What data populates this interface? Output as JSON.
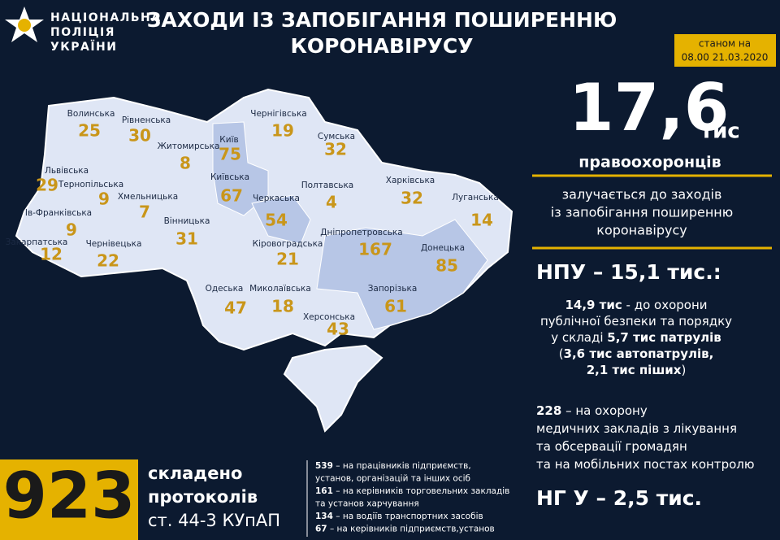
{
  "header": {
    "org_lines": [
      "НАЦІОНАЛЬНА",
      "ПОЛІЦІЯ",
      "УКРАЇНИ"
    ],
    "title_lines": [
      "ЗАХОДИ ІЗ ЗАПОБІГАННЯ ПОШИРЕННЮ",
      "КОРОНАВІРУСУ"
    ],
    "date_lines": [
      "станом на",
      "08.00 21.03.2020"
    ]
  },
  "regions": [
    {
      "name": "Волинська",
      "count": "25"
    },
    {
      "name": "Рівненська",
      "count": "30"
    },
    {
      "name": "Житомирська",
      "count": "8"
    },
    {
      "name": "Київ",
      "count": "75"
    },
    {
      "name": "Київська",
      "count": "67"
    },
    {
      "name": "Чернігівська",
      "count": "19"
    },
    {
      "name": "Сумська",
      "count": "32"
    },
    {
      "name": "Полтавська",
      "count": "4"
    },
    {
      "name": "Харківська",
      "count": "32"
    },
    {
      "name": "Луганська",
      "count": "14"
    },
    {
      "name": "Львівська",
      "count": "29"
    },
    {
      "name": "Тернопільська",
      "count": "9"
    },
    {
      "name": "Хмельницька",
      "count": "7"
    },
    {
      "name": "Ів-Франківська",
      "count": "9"
    },
    {
      "name": "Закарпатська",
      "count": "12"
    },
    {
      "name": "Чернівецька",
      "count": "22"
    },
    {
      "name": "Вінницька",
      "count": "31"
    },
    {
      "name": "Черкаська",
      "count": "54"
    },
    {
      "name": "Кіровоградська",
      "count": "21"
    },
    {
      "name": "Дніпропетровська",
      "count": "167"
    },
    {
      "name": "Донецька",
      "count": "85"
    },
    {
      "name": "Одеська",
      "count": "47"
    },
    {
      "name": "Миколаївська",
      "count": "18"
    },
    {
      "name": "Запорізька",
      "count": "61"
    },
    {
      "name": "Херсонська",
      "count": "43"
    }
  ],
  "summary": {
    "total": "17,6",
    "total_unit": "тис",
    "total_label": "правоохоронців",
    "description_lines": [
      "залучається до заходів",
      "із запобігання поширенню",
      "коронавірусу"
    ],
    "npu_heading": "НПУ – 15,1 тис.:",
    "npu_lines": [
      [
        {
          "text": "14,9 тис",
          "bold": true
        },
        {
          "text": " - до охорони"
        }
      ],
      [
        {
          "text": "публічної безпеки  та порядку"
        }
      ],
      [
        {
          "text": "у складі "
        },
        {
          "text": "5,7 тис патрулів",
          "bold": true
        }
      ],
      [
        {
          "text": "("
        },
        {
          "text": "3,6 тис автопатрулів,",
          "bold": true
        }
      ],
      [
        {
          "text": "2,1 тис піших",
          "bold": true
        },
        {
          "text": ")"
        }
      ]
    ],
    "medical_lines": [
      [
        {
          "text": "228",
          "bold": true
        },
        {
          "text": " – на охорону"
        }
      ],
      [
        {
          "text": "медичних закладів з лікування"
        }
      ],
      [
        {
          "text": "та обсервації громадян"
        }
      ],
      [
        {
          "text": "та на мобільних постах контролю"
        }
      ]
    ],
    "ngu_heading": "НГ У – 2,5 тис."
  },
  "protocols": {
    "count": "923",
    "label_lines": [
      "складено",
      "протоколів",
      "ст. 44-3 КУпАП"
    ],
    "breakdown": [
      [
        {
          "text": "539",
          "bold": true
        },
        {
          "text": " – на працівників підприємств,"
        }
      ],
      [
        {
          "text": "установ, організацій та інших осіб"
        }
      ],
      [
        {
          "text": "161",
          "bold": true
        },
        {
          "text": " – на керівників торговельних закладів"
        }
      ],
      [
        {
          "text": "та установ харчування"
        }
      ],
      [
        {
          "text": "134",
          "bold": true
        },
        {
          "text": " – на водіїв транспортних засобів"
        }
      ],
      [
        {
          "text": "67",
          "bold": true
        },
        {
          "text": " – на керівників підприємств,установ"
        }
      ]
    ]
  }
}
